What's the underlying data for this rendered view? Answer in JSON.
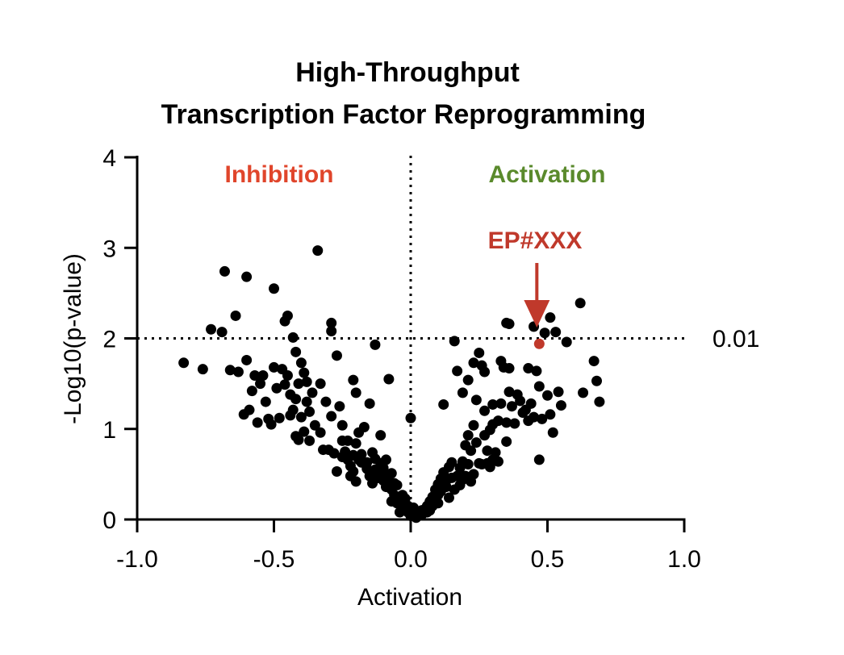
{
  "chart_data": {
    "type": "scatter",
    "title": [
      "High-Throughput",
      "Transcription Factor Reprogramming"
    ],
    "xlabel": "Activation",
    "ylabel": "-Log10(p-value)",
    "xlim": [
      -1.0,
      1.0
    ],
    "ylim": [
      0,
      4
    ],
    "xticks": [
      "-1.0",
      "-0.5",
      "0.0",
      "0.5",
      "1.0"
    ],
    "yticks": [
      "0",
      "1",
      "2",
      "3",
      "4"
    ],
    "threshold": {
      "y": 2,
      "label": "0.01"
    },
    "vline_x": 0,
    "region_labels": {
      "left": {
        "text": "Inhibition",
        "color": "#e0452b"
      },
      "right": {
        "text": "Activation",
        "color": "#5a8a2c"
      }
    },
    "highlight": {
      "label": "EP#XXX",
      "x": 0.47,
      "y": 1.94,
      "color": "#c0392b"
    },
    "point_color": "#000000",
    "points": [
      [
        -0.83,
        1.73
      ],
      [
        -0.76,
        1.66
      ],
      [
        -0.73,
        2.1
      ],
      [
        -0.69,
        2.07
      ],
      [
        -0.68,
        2.74
      ],
      [
        -0.66,
        1.65
      ],
      [
        -0.64,
        2.25
      ],
      [
        -0.63,
        1.63
      ],
      [
        -0.61,
        1.16
      ],
      [
        -0.6,
        2.68
      ],
      [
        -0.6,
        1.76
      ],
      [
        -0.59,
        1.21
      ],
      [
        -0.58,
        1.42
      ],
      [
        -0.57,
        1.59
      ],
      [
        -0.56,
        1.07
      ],
      [
        -0.55,
        1.5
      ],
      [
        -0.54,
        1.59
      ],
      [
        -0.53,
        1.3
      ],
      [
        -0.52,
        1.11
      ],
      [
        -0.51,
        1.05
      ],
      [
        -0.5,
        2.55
      ],
      [
        -0.5,
        1.68
      ],
      [
        -0.49,
        1.45
      ],
      [
        -0.48,
        1.12
      ],
      [
        -0.47,
        1.66
      ],
      [
        -0.46,
        1.49
      ],
      [
        -0.46,
        2.19
      ],
      [
        -0.45,
        2.25
      ],
      [
        -0.45,
        1.59
      ],
      [
        -0.44,
        1.38
      ],
      [
        -0.44,
        1.15
      ],
      [
        -0.43,
        2.01
      ],
      [
        -0.43,
        1.21
      ],
      [
        -0.42,
        0.92
      ],
      [
        -0.42,
        1.33
      ],
      [
        -0.42,
        1.85
      ],
      [
        -0.41,
        1.5
      ],
      [
        -0.41,
        0.88
      ],
      [
        -0.4,
        1.73
      ],
      [
        -0.4,
        1.13
      ],
      [
        -0.39,
        1.62
      ],
      [
        -0.39,
        0.97
      ],
      [
        -0.38,
        1.52
      ],
      [
        -0.38,
        1.3
      ],
      [
        -0.37,
        1.19
      ],
      [
        -0.37,
        0.87
      ],
      [
        -0.36,
        1.4
      ],
      [
        -0.35,
        1.04
      ],
      [
        -0.34,
        2.97
      ],
      [
        -0.33,
        1.5
      ],
      [
        -0.33,
        0.96
      ],
      [
        -0.32,
        0.77
      ],
      [
        -0.31,
        1.3
      ],
      [
        -0.3,
        0.77
      ],
      [
        -0.29,
        2.17
      ],
      [
        -0.29,
        1.14
      ],
      [
        -0.29,
        2.08
      ],
      [
        -0.28,
        0.73
      ],
      [
        -0.27,
        0.53
      ],
      [
        -0.27,
        1.81
      ],
      [
        -0.26,
        1.25
      ],
      [
        -0.25,
        0.87
      ],
      [
        -0.25,
        1.04
      ],
      [
        -0.25,
        0.69
      ],
      [
        -0.24,
        0.75
      ],
      [
        -0.23,
        0.66
      ],
      [
        -0.23,
        0.87
      ],
      [
        -0.22,
        0.48
      ],
      [
        -0.22,
        0.59
      ],
      [
        -0.21,
        0.71
      ],
      [
        -0.21,
        0.53
      ],
      [
        -0.21,
        1.54
      ],
      [
        -0.2,
        0.42
      ],
      [
        -0.2,
        0.84
      ],
      [
        -0.2,
        1.4
      ],
      [
        -0.19,
        0.96
      ],
      [
        -0.19,
        0.66
      ],
      [
        -0.18,
        0.63
      ],
      [
        -0.18,
        0.72
      ],
      [
        -0.17,
        1.02
      ],
      [
        -0.16,
        0.63
      ],
      [
        -0.16,
        0.56
      ],
      [
        -0.15,
        0.48
      ],
      [
        -0.15,
        1.28
      ],
      [
        -0.14,
        0.74
      ],
      [
        -0.14,
        0.4
      ],
      [
        -0.13,
        0.45
      ],
      [
        -0.13,
        0.55
      ],
      [
        -0.13,
        0.67
      ],
      [
        -0.13,
        1.93
      ],
      [
        -0.12,
        0.46
      ],
      [
        -0.11,
        0.93
      ],
      [
        -0.11,
        0.62
      ],
      [
        -0.11,
        0.49
      ],
      [
        -0.1,
        0.57
      ],
      [
        -0.1,
        0.43
      ],
      [
        -0.09,
        0.36
      ],
      [
        -0.09,
        0.66
      ],
      [
        -0.08,
        1.55
      ],
      [
        -0.08,
        0.49
      ],
      [
        -0.08,
        0.42
      ],
      [
        -0.07,
        0.51
      ],
      [
        -0.07,
        0.33
      ],
      [
        -0.07,
        0.2
      ],
      [
        -0.06,
        0.4
      ],
      [
        -0.06,
        0.27
      ],
      [
        -0.05,
        0.38
      ],
      [
        -0.05,
        0.18
      ],
      [
        -0.04,
        0.19
      ],
      [
        -0.04,
        0.08
      ],
      [
        -0.03,
        0.13
      ],
      [
        -0.03,
        0.27
      ],
      [
        -0.02,
        0.1
      ],
      [
        -0.02,
        0.23
      ],
      [
        -0.01,
        0.08
      ],
      [
        -0.01,
        0.15
      ],
      [
        0.0,
        1.12
      ],
      [
        0.0,
        0.04
      ],
      [
        0.01,
        0.13
      ],
      [
        0.01,
        0.07
      ],
      [
        0.02,
        0.02
      ],
      [
        0.03,
        0.06
      ],
      [
        0.04,
        0.05
      ],
      [
        0.04,
        0.1
      ],
      [
        0.05,
        0.11
      ],
      [
        0.06,
        0.08
      ],
      [
        0.06,
        0.15
      ],
      [
        0.07,
        0.2
      ],
      [
        0.07,
        0.1
      ],
      [
        0.08,
        0.25
      ],
      [
        0.08,
        0.15
      ],
      [
        0.09,
        0.24
      ],
      [
        0.09,
        0.33
      ],
      [
        0.1,
        0.18
      ],
      [
        0.1,
        0.39
      ],
      [
        0.1,
        0.27
      ],
      [
        0.11,
        0.45
      ],
      [
        0.11,
        0.31
      ],
      [
        0.12,
        0.52
      ],
      [
        0.12,
        0.37
      ],
      [
        0.12,
        1.27
      ],
      [
        0.13,
        0.36
      ],
      [
        0.13,
        0.43
      ],
      [
        0.14,
        0.58
      ],
      [
        0.14,
        0.24
      ],
      [
        0.15,
        0.63
      ],
      [
        0.15,
        0.46
      ],
      [
        0.16,
        0.33
      ],
      [
        0.16,
        1.97
      ],
      [
        0.17,
        0.48
      ],
      [
        0.17,
        1.64
      ],
      [
        0.18,
        0.38
      ],
      [
        0.18,
        0.57
      ],
      [
        0.19,
        0.64
      ],
      [
        0.19,
        0.44
      ],
      [
        0.19,
        1.4
      ],
      [
        0.2,
        0.82
      ],
      [
        0.2,
        0.48
      ],
      [
        0.21,
        0.93
      ],
      [
        0.21,
        0.61
      ],
      [
        0.21,
        1.54
      ],
      [
        0.22,
        0.76
      ],
      [
        0.22,
        0.42
      ],
      [
        0.23,
        1.04
      ],
      [
        0.23,
        0.5
      ],
      [
        0.23,
        1.73
      ],
      [
        0.24,
        0.85
      ],
      [
        0.24,
        1.32
      ],
      [
        0.25,
        0.62
      ],
      [
        0.25,
        1.84
      ],
      [
        0.26,
        0.61
      ],
      [
        0.26,
        1.7
      ],
      [
        0.27,
        0.93
      ],
      [
        0.27,
        1.2
      ],
      [
        0.27,
        1.63
      ],
      [
        0.28,
        0.76
      ],
      [
        0.28,
        0.62
      ],
      [
        0.29,
        0.99
      ],
      [
        0.29,
        0.58
      ],
      [
        0.3,
        1.05
      ],
      [
        0.3,
        0.66
      ],
      [
        0.3,
        1.27
      ],
      [
        0.31,
        0.74
      ],
      [
        0.32,
        1.09
      ],
      [
        0.32,
        0.64
      ],
      [
        0.33,
        1.75
      ],
      [
        0.33,
        1.28
      ],
      [
        0.34,
        1.68
      ],
      [
        0.35,
        2.17
      ],
      [
        0.35,
        0.86
      ],
      [
        0.35,
        1.07
      ],
      [
        0.36,
        2.16
      ],
      [
        0.36,
        1.67
      ],
      [
        0.36,
        1.41
      ],
      [
        0.37,
        1.25
      ],
      [
        0.38,
        1.06
      ],
      [
        0.39,
        1.38
      ],
      [
        0.4,
        1.31
      ],
      [
        0.41,
        1.18
      ],
      [
        0.42,
        1.21
      ],
      [
        0.43,
        1.09
      ],
      [
        0.43,
        1.67
      ],
      [
        0.44,
        1.28
      ],
      [
        0.45,
        1.13
      ],
      [
        0.45,
        2.13
      ],
      [
        0.46,
        1.64
      ],
      [
        0.47,
        1.47
      ],
      [
        0.47,
        0.66
      ],
      [
        0.48,
        1.11
      ],
      [
        0.49,
        2.06
      ],
      [
        0.5,
        1.37
      ],
      [
        0.51,
        2.23
      ],
      [
        0.51,
        1.16
      ],
      [
        0.52,
        0.96
      ],
      [
        0.53,
        2.07
      ],
      [
        0.54,
        1.41
      ],
      [
        0.55,
        1.26
      ],
      [
        0.57,
        1.96
      ],
      [
        0.62,
        2.39
      ],
      [
        0.63,
        1.4
      ],
      [
        0.67,
        1.75
      ],
      [
        0.68,
        1.53
      ],
      [
        0.69,
        1.3
      ]
    ]
  }
}
